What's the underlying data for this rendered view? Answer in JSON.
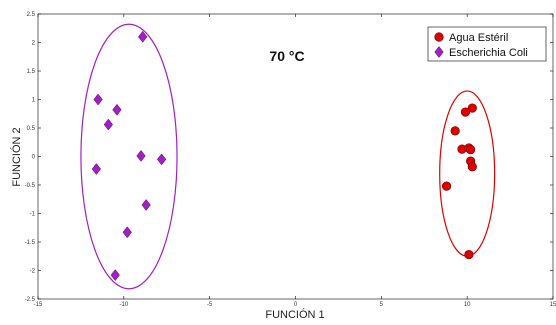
{
  "chart_data": {
    "type": "scatter",
    "title": "",
    "annotation": "70 °C",
    "xlabel": "FUNCIÓN 1",
    "ylabel": "FUNCIÓN 2",
    "xlim": [
      -15,
      15
    ],
    "ylim": [
      -2.5,
      2.5
    ],
    "xticks": [
      -15,
      -10,
      -5,
      0,
      5,
      10,
      15
    ],
    "yticks": [
      -2.5,
      -2,
      -1.5,
      -1,
      -0.5,
      0,
      0.5,
      1,
      1.5,
      2,
      2.5
    ],
    "xtick_labels": [
      "-15",
      "-10",
      "-5",
      "0",
      "5",
      "10",
      "15"
    ],
    "ytick_labels": [
      "-2.5",
      "-2",
      "-1.5",
      "-1",
      "-0.5",
      "0",
      "0.5",
      "1",
      "1.5",
      "2",
      "2.5"
    ],
    "grid": false,
    "legend_position": "top-right",
    "series": [
      {
        "name": "Agua Estéril",
        "marker": "circle",
        "color": "#e00000",
        "points": [
          {
            "x": 10.3,
            "y": 0.85
          },
          {
            "x": 9.9,
            "y": 0.78
          },
          {
            "x": 9.3,
            "y": 0.45
          },
          {
            "x": 9.7,
            "y": 0.13
          },
          {
            "x": 10.1,
            "y": 0.15
          },
          {
            "x": 10.2,
            "y": 0.12
          },
          {
            "x": 10.2,
            "y": -0.08
          },
          {
            "x": 10.3,
            "y": -0.18
          },
          {
            "x": 8.8,
            "y": -0.52
          },
          {
            "x": 10.1,
            "y": -1.72
          }
        ],
        "ellipse": {
          "cx": 10.0,
          "cy": -0.3,
          "rx": 1.6,
          "ry": 1.45
        }
      },
      {
        "name": "Escherichia Coli",
        "marker": "diamond",
        "color": "#a020c0",
        "points": [
          {
            "x": -8.9,
            "y": 2.1
          },
          {
            "x": -11.5,
            "y": 1.0
          },
          {
            "x": -10.4,
            "y": 0.82
          },
          {
            "x": -10.9,
            "y": 0.56
          },
          {
            "x": -9.0,
            "y": 0.01
          },
          {
            "x": -7.8,
            "y": -0.05
          },
          {
            "x": -11.6,
            "y": -0.22
          },
          {
            "x": -8.7,
            "y": -0.85
          },
          {
            "x": -9.8,
            "y": -1.33
          },
          {
            "x": -10.5,
            "y": -2.08
          }
        ],
        "ellipse": {
          "cx": -9.7,
          "cy": 0.0,
          "rx": 2.8,
          "ry": 2.32
        }
      }
    ]
  }
}
